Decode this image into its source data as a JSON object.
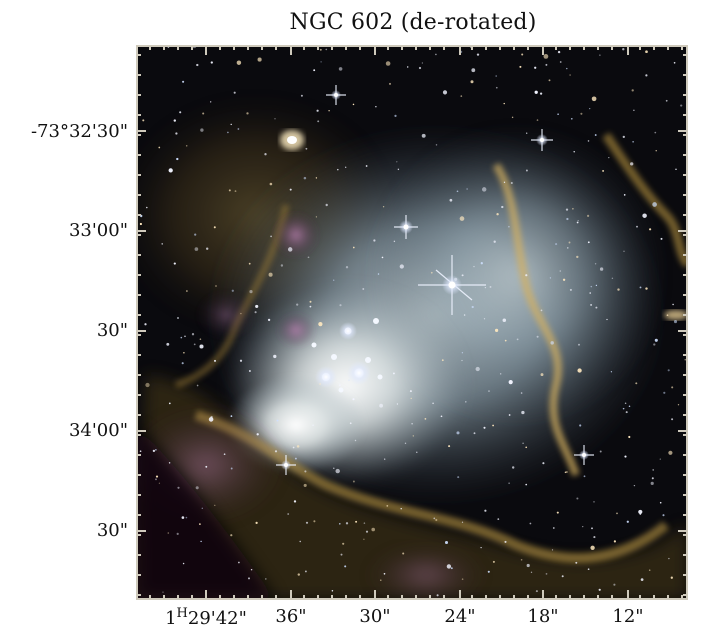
{
  "figure": {
    "title": "NGC 602 (de-rotated)"
  },
  "axes": {
    "y_ticks": [
      "-73°32'30\"",
      "33'00\"",
      "30\"",
      "34'00\"",
      "30\""
    ],
    "x_ticks": [
      "1H29'42\"",
      "36\"",
      "30\"",
      "24\"",
      "18\"",
      "12\""
    ]
  },
  "colors": {
    "frame": "#cfcabc",
    "sky": "#0a0a0e",
    "nebula_blue": "#9fb0b8",
    "nebula_gold": "#c8a24a",
    "nebula_pink": "#a06a9a"
  }
}
